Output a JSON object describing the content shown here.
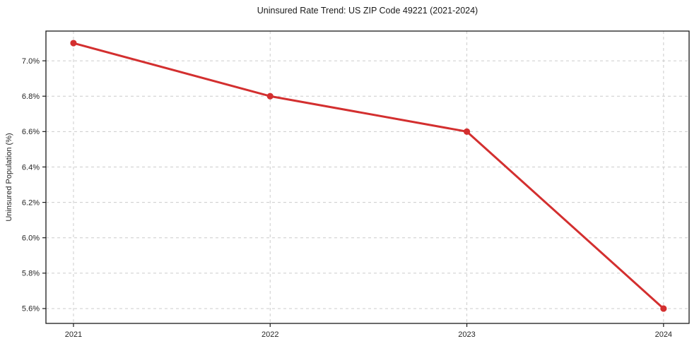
{
  "chart_data": {
    "type": "line",
    "title": "Uninsured Rate Trend: US ZIP Code 49221 (2021-2024)",
    "xlabel": "",
    "ylabel": "Uninsured Population (%)",
    "x": [
      2021,
      2022,
      2023,
      2024
    ],
    "x_tick_labels": [
      "2021",
      "2022",
      "2023",
      "2024"
    ],
    "values": [
      7.1,
      6.8,
      6.6,
      5.6
    ],
    "y_ticks": [
      5.6,
      5.8,
      6.0,
      6.2,
      6.4,
      6.6,
      6.8,
      7.0
    ],
    "y_tick_labels": [
      "5.6%",
      "5.8%",
      "6.0%",
      "6.2%",
      "6.4%",
      "6.6%",
      "6.8%",
      "7.0%"
    ],
    "xlim": [
      2020.86,
      2024.13
    ],
    "ylim": [
      5.516,
      7.168
    ],
    "grid": true,
    "legend": "none",
    "line_color": "#d32f2f",
    "marker": "circle",
    "background": "#ffffff"
  }
}
